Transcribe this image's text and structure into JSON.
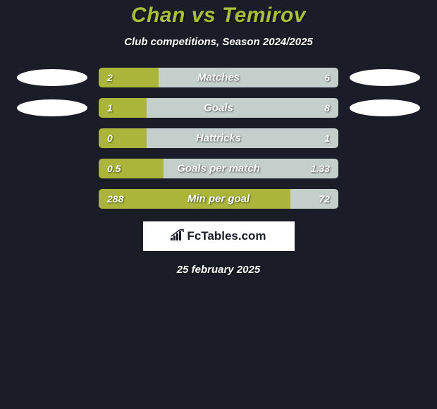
{
  "title": "Chan vs Temirov",
  "subtitle": "Club competitions, Season 2024/2025",
  "date": "25 february 2025",
  "logo_text": "FcTables.com",
  "colors": {
    "background": "#1a1d27",
    "title_color": "#a8bf3c",
    "bar_left": "#aab53a",
    "bar_right": "#c4cfcc",
    "badge": "#ffffff",
    "text": "#ffffff"
  },
  "stats": [
    {
      "label": "Matches",
      "left_value": "2",
      "right_value": "6",
      "left_pct": 25,
      "right_pct": 75,
      "show_badges": true
    },
    {
      "label": "Goals",
      "left_value": "1",
      "right_value": "8",
      "left_pct": 20,
      "right_pct": 80,
      "show_badges": true
    },
    {
      "label": "Hattricks",
      "left_value": "0",
      "right_value": "1",
      "left_pct": 20,
      "right_pct": 80,
      "show_badges": false
    },
    {
      "label": "Goals per match",
      "left_value": "0.5",
      "right_value": "1.33",
      "left_pct": 27,
      "right_pct": 73,
      "show_badges": false
    },
    {
      "label": "Min per goal",
      "left_value": "288",
      "right_value": "72",
      "left_pct": 80,
      "right_pct": 20,
      "show_badges": false
    }
  ]
}
